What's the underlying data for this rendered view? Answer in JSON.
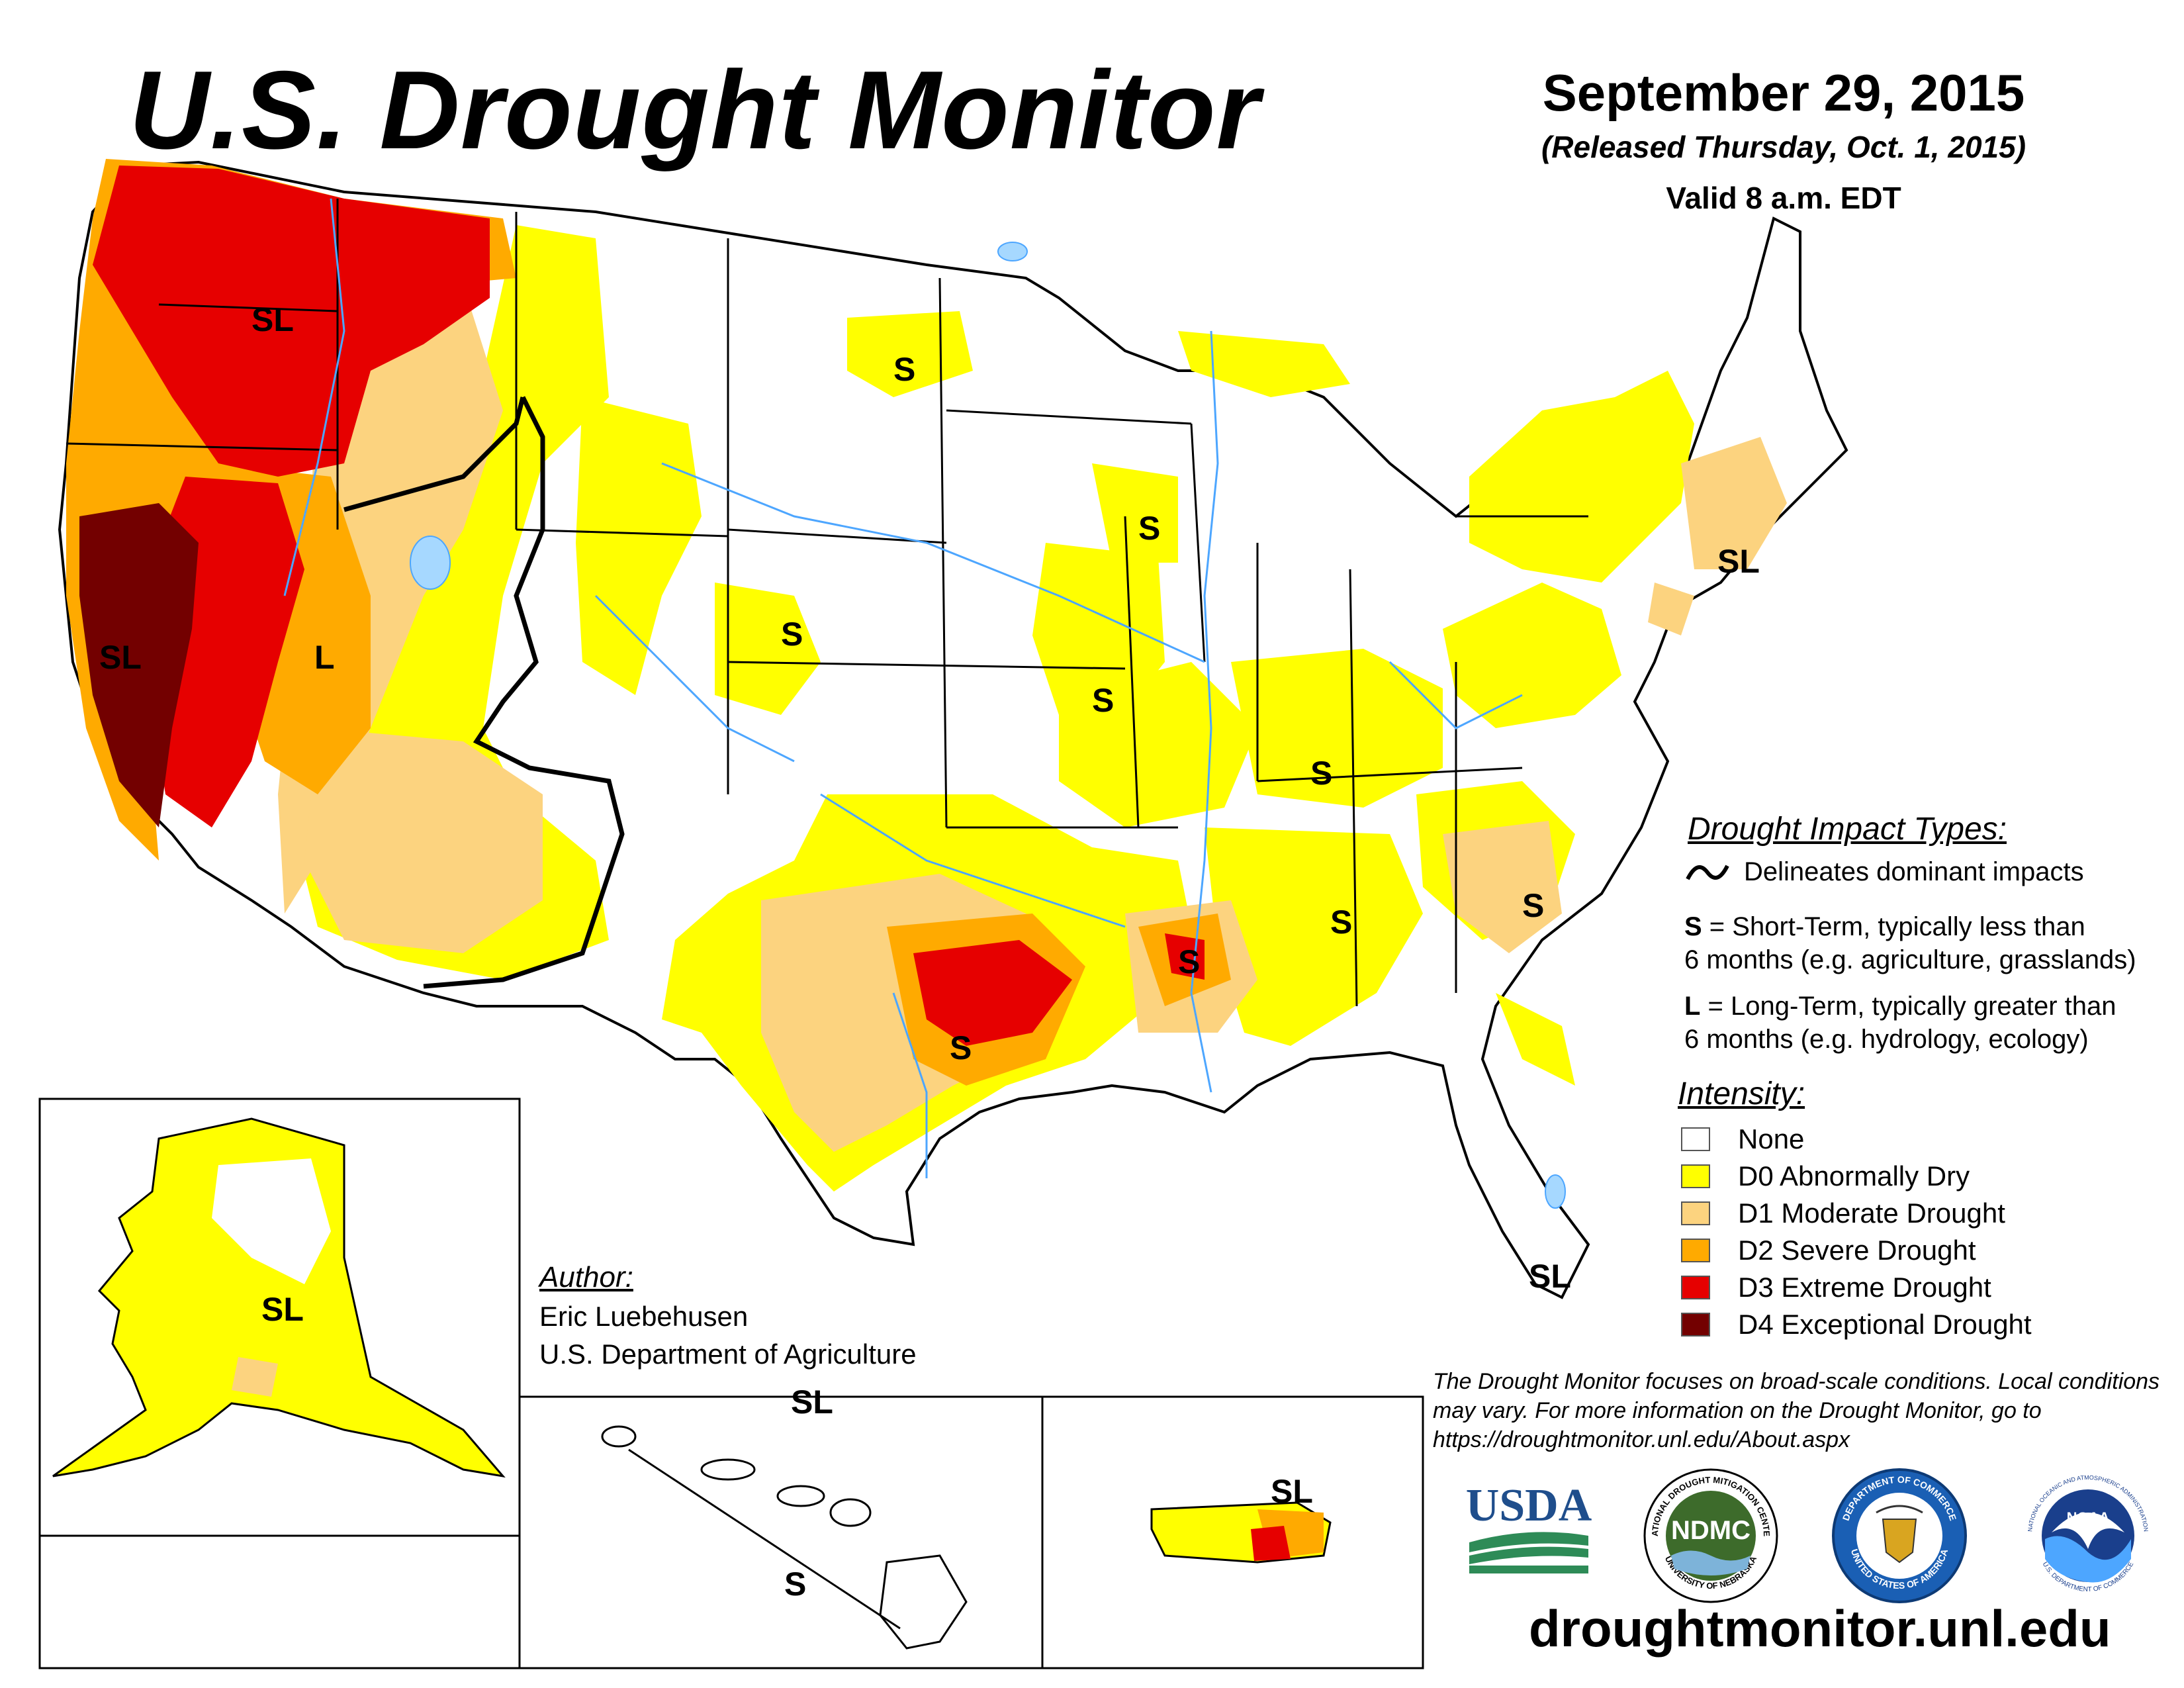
{
  "header": {
    "title": "U.S. Drought Monitor",
    "date": "September 29, 2015",
    "released": "(Released Thursday, Oct. 1, 2015)",
    "valid": "Valid 8 a.m. EDT"
  },
  "map_labels": {
    "pnw": "SL",
    "california": "SL",
    "nevada": "L",
    "north_dakota": "S",
    "iowa": "S",
    "colorado_kansas": "S",
    "missouri": "S",
    "kentucky": "S",
    "alabama": "S",
    "south_carolina": "S",
    "arkansas": "S",
    "texas": "S",
    "new_york": "SL",
    "florida": "SL",
    "alaska": "SL",
    "hawaii_top": "SL",
    "hawaii_bottom": "S",
    "puerto_rico": "SL"
  },
  "impact_legend": {
    "title": "Drought Impact Types:",
    "delineates": "Delineates dominant impacts",
    "short_term_key": "S",
    "short_term_line1": " = Short-Term, typically less than",
    "short_term_line2": "6 months (e.g. agriculture, grasslands)",
    "long_term_key": "L",
    "long_term_line1": " = Long-Term, typically greater than",
    "long_term_line2": "6 months (e.g. hydrology, ecology)"
  },
  "intensity_legend": {
    "title": "Intensity:",
    "items": [
      {
        "label": "None",
        "color": "#ffffff"
      },
      {
        "label": "D0 Abnormally Dry",
        "color": "#ffff00"
      },
      {
        "label": "D1 Moderate Drought",
        "color": "#fcd37f"
      },
      {
        "label": "D2 Severe Drought",
        "color": "#ffaa00"
      },
      {
        "label": "D3 Extreme Drought",
        "color": "#e60000"
      },
      {
        "label": "D4 Exceptional Drought",
        "color": "#730000"
      }
    ]
  },
  "author": {
    "heading": "Author:",
    "name": "Eric Luebehusen",
    "org": "U.S. Department of Agriculture"
  },
  "disclaimer": "The Drought Monitor focuses on broad-scale conditions. Local conditions may vary. For more information on the Drought Monitor, go to https://droughtmonitor.unl.edu/About.aspx",
  "logos": {
    "usda": "USDA",
    "ndmc": "NDMC",
    "ndmc_ring_top": "NATIONAL DROUGHT MITIGATION CENTER",
    "ndmc_ring_bottom": "UNIVERSITY OF NEBRASKA",
    "commerce_ring_top": "DEPARTMENT OF COMMERCE",
    "commerce_ring_bottom": "UNITED STATES OF AMERICA",
    "noaa": "NOAA",
    "noaa_ring": "NATIONAL OCEANIC AND ATMOSPHERIC ADMINISTRATION",
    "noaa_ring_bottom": "U.S. DEPARTMENT OF COMMERCE"
  },
  "website": "droughtmonitor.unl.edu",
  "colors": {
    "none": "#ffffff",
    "d0": "#ffff00",
    "d1": "#fcd37f",
    "d2": "#ffaa00",
    "d3": "#e60000",
    "d4": "#730000",
    "water": "#4da6ff",
    "lake": "#a6d8ff"
  }
}
